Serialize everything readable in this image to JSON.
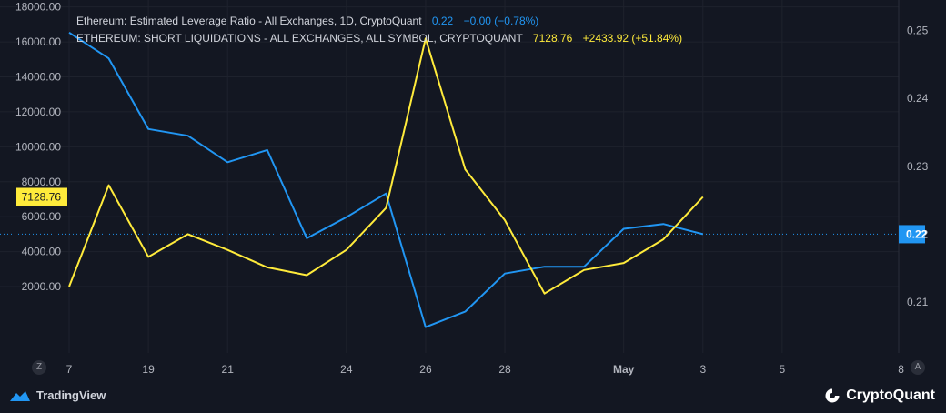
{
  "legend": {
    "series1": {
      "name": "Ethereum: Estimated Leverage Ratio - All Exchanges, 1D, CryptoQuant",
      "value": "0.22",
      "change": "−0.00 (−0.78%)"
    },
    "series2": {
      "name": "ETHEREUM: SHORT LIQUIDATIONS - ALL EXCHANGES, ALL SYMBOL, CRYPTOQUANT",
      "value": "7128.76",
      "change": "+2433.92 (+51.84%)"
    }
  },
  "branding": {
    "left": "TradingView",
    "right": "CryptoQuant"
  },
  "buttons": {
    "left": "Z",
    "right": "A"
  },
  "colors": {
    "background": "#131722",
    "leverage": "#2196f3",
    "liquidations": "#ffeb3b",
    "grid": "#1e222d",
    "axis_text": "#b2b5be"
  },
  "chart_data": {
    "type": "line",
    "x_ticks": [
      "7",
      "19",
      "21",
      "24",
      "26",
      "28",
      "May",
      "3",
      "5",
      "8"
    ],
    "left_axis": {
      "ticks": [
        "18000.00",
        "16000.00",
        "14000.00",
        "12000.00",
        "10000.00",
        "8000.00",
        "6000.00",
        "4000.00",
        "2000.00"
      ],
      "ylim": [
        -1800,
        18400
      ],
      "current_label": "7128.76"
    },
    "right_axis": {
      "ticks": [
        "0.25",
        "0.24",
        "0.23",
        "0.22",
        "0.21"
      ],
      "ylim": [
        0.2025,
        0.2545
      ],
      "current_label": "0.22"
    },
    "x": [
      "Apr 17",
      "Apr 18",
      "Apr 19",
      "Apr 20",
      "Apr 21",
      "Apr 22",
      "Apr 23",
      "Apr 24",
      "Apr 25",
      "Apr 26",
      "Apr 27",
      "Apr 28",
      "Apr 29",
      "Apr 30",
      "May 1",
      "May 2",
      "May 3"
    ],
    "series": [
      {
        "name": "Ethereum: Estimated Leverage Ratio - All Exchanges",
        "axis": "right",
        "values": [
          0.2497,
          0.2459,
          0.2355,
          0.2345,
          0.2306,
          0.2324,
          0.2194,
          0.2225,
          0.226,
          0.2063,
          0.2086,
          0.2142,
          0.2152,
          0.2152,
          0.2208,
          0.2215,
          0.22
        ]
      },
      {
        "name": "ETHEREUM: SHORT LIQUIDATIONS - ALL EXCHANGES, ALL SYMBOL, CRYPTOQUANT",
        "axis": "left",
        "values": [
          2000,
          7800,
          3700,
          5000,
          4100,
          3100,
          2650,
          4100,
          6500,
          16200,
          8700,
          5800,
          1600,
          2950,
          3350,
          4700,
          7128.76
        ]
      }
    ]
  }
}
